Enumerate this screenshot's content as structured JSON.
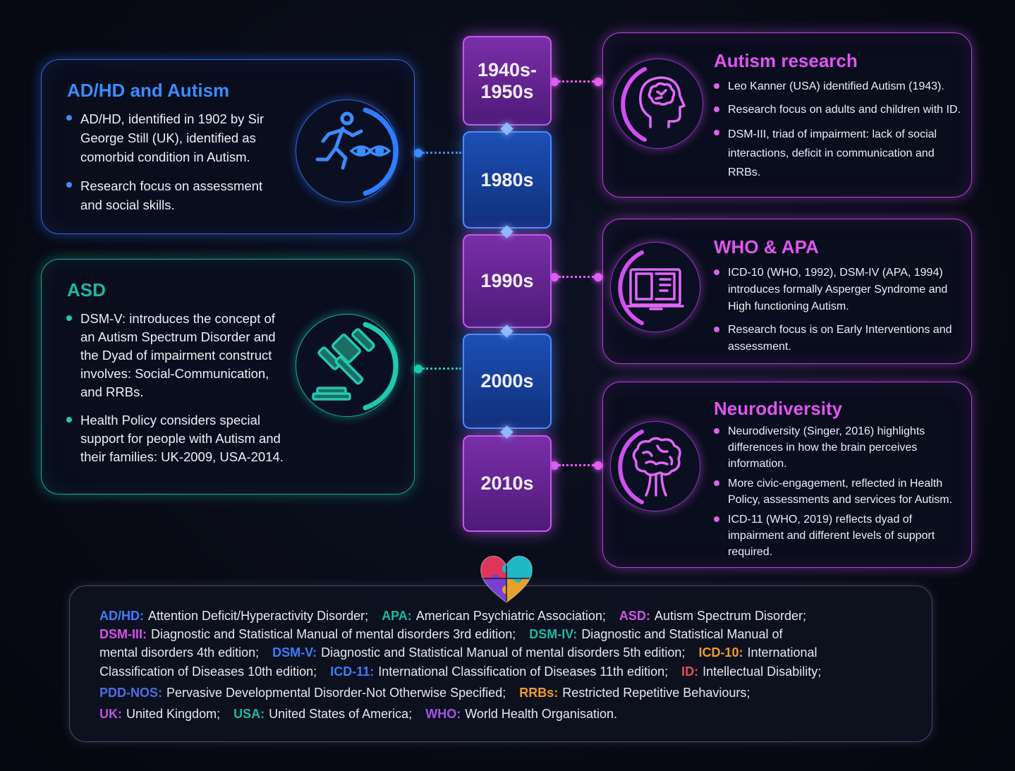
{
  "colors": {
    "blue": "#3d8bff",
    "teal": "#1fb8a4",
    "purple": "#e056f0",
    "orange": "#f29a2e",
    "red": "#f04a5a",
    "navy": "#4a6fe0"
  },
  "timeline": {
    "eras": [
      "1940s-\n1950s",
      "1980s",
      "1990s",
      "2000s",
      "2010s"
    ]
  },
  "adhd": {
    "title": "AD/HD and Autism",
    "icon": "running-person-eyes-icon",
    "bullets": [
      "AD/HD, identified in 1902 by Sir George Still (UK), identified as comorbid condition in Autism.",
      "Research focus on assessment and social skills."
    ]
  },
  "asd": {
    "title": "ASD",
    "icon": "gavel-icon",
    "bullets": [
      "DSM-V: introduces the concept of an Autism Spectrum Disorder and the Dyad of impairment construct involves: Social-Communication, and RRBs.",
      "Health Policy considers special support for people with Autism and their families: UK-2009, USA-2014."
    ]
  },
  "research": {
    "title": "Autism research",
    "icon": "head-brain-icon",
    "bullets": [
      "Leo Kanner (USA) identified Autism (1943).",
      "Research focus on adults and children with ID.",
      "DSM-III, triad of impairment:  lack of social interactions, deficit in communication and RRBs."
    ]
  },
  "who_apa": {
    "title": "WHO & APA",
    "icon": "book-icon",
    "bullets": [
      "ICD-10 (WHO, 1992), DSM-IV (APA, 1994) introduces formally Asperger Syndrome and High functioning Autism.",
      "Research focus is on Early Interventions and assessment."
    ]
  },
  "neuro": {
    "title": "Neurodiversity",
    "icon": "brain-icon",
    "bullets": [
      "Neurodiversity (Singer, 2016) highlights differences in how the brain perceives information.",
      "More civic-engagement, reflected in Health Policy, assessments and services for Autism.",
      "ICD-11 (WHO, 2019) reflects dyad of impairment and different levels of support required."
    ]
  },
  "glossary": {
    "icon": "puzzle-heart-icon",
    "lines": [
      [
        {
          "term": "AD/HD:",
          "def": "Attention Deficit/Hyperactivity Disorder;",
          "color": "#3d7dff"
        },
        {
          "term": "APA:",
          "def": "American Psychiatric Association;",
          "color": "#1fb8a4"
        },
        {
          "term": "ASD:",
          "def": "Autism Spectrum Disorder;",
          "color": "#d553ec"
        }
      ],
      [
        {
          "term": "DSM-III:",
          "def": "Diagnostic and Statistical Manual of mental disorders 3rd edition;",
          "color": "#d553ec"
        },
        {
          "term": "DSM-IV:",
          "def": "Diagnostic and Statistical Manual of",
          "color": "#1fb8a4"
        }
      ],
      [
        {
          "term": "",
          "def": "mental disorders 4th edition;",
          "color": "#e6e8ef"
        },
        {
          "term": "DSM-V:",
          "def": "Diagnostic and Statistical Manual of mental disorders 5th edition;",
          "color": "#3d7dff"
        },
        {
          "term": "ICD-10:",
          "def": "International",
          "color": "#f29a2e"
        }
      ],
      [
        {
          "term": "",
          "def": "Classification of Diseases 10th edition;",
          "color": "#e6e8ef"
        },
        {
          "term": "ICD-11:",
          "def": "International Classification of Diseases 11th edition;",
          "color": "#3d7dff"
        },
        {
          "term": "ID:",
          "def": "Intellectual Disability;",
          "color": "#f04a5a"
        }
      ],
      [
        {
          "term": "PDD-NOS:",
          "def": "Pervasive Developmental Disorder-Not Otherwise Specified;",
          "color": "#4a6fe0"
        },
        {
          "term": "RRBs:",
          "def": "Restricted Repetitive Behaviours;",
          "color": "#f29a2e"
        }
      ],
      [
        {
          "term": "UK:",
          "def": "United Kingdom;",
          "color": "#c24fe0"
        },
        {
          "term": "USA:",
          "def": "United States of America;",
          "color": "#1fb8a4"
        },
        {
          "term": "WHO:",
          "def": "World Health Organisation.",
          "color": "#a355e8"
        }
      ]
    ]
  }
}
